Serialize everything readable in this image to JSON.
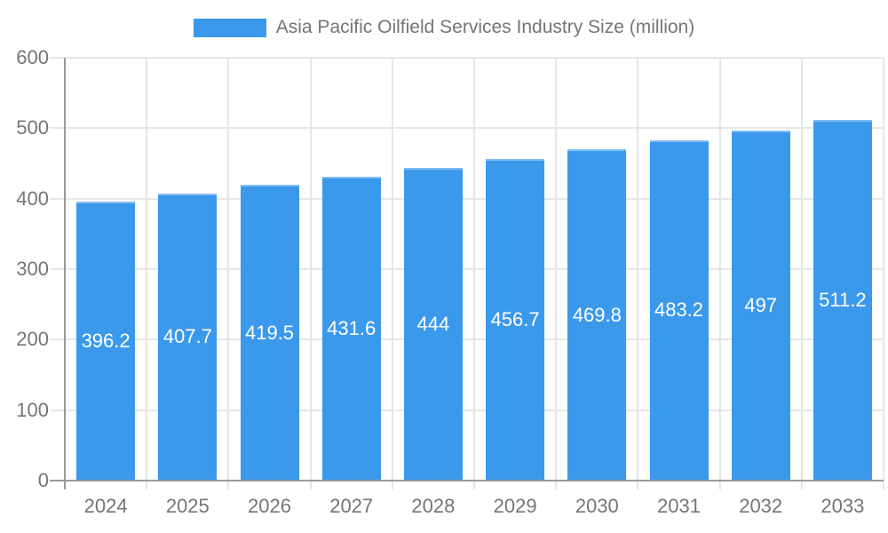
{
  "legend": {
    "label": "Asia Pacific Oilfield Services Industry Size (million)"
  },
  "chart_data": {
    "type": "bar",
    "title": "Asia Pacific Oilfield Services Industry Size (million)",
    "categories": [
      "2024",
      "2025",
      "2026",
      "2027",
      "2028",
      "2029",
      "2030",
      "2031",
      "2032",
      "2033"
    ],
    "series": [
      {
        "name": "Asia Pacific Oilfield Services Industry Size (million)",
        "values": [
          396.2,
          407.7,
          419.5,
          431.6,
          444,
          456.7,
          469.8,
          483.2,
          497,
          511.2
        ]
      }
    ],
    "value_labels": [
      "396.2",
      "407.7",
      "419.5",
      "431.6",
      "444",
      "456.7",
      "469.8",
      "483.2",
      "497",
      "511.2"
    ],
    "xlabel": "",
    "ylabel": "",
    "ylim": [
      0,
      600
    ],
    "yticks": [
      0,
      100,
      200,
      300,
      400,
      500,
      600
    ],
    "grid": true,
    "legend_position": "top",
    "colors": {
      "bar": "#3B99EC",
      "axis": "#999999",
      "gridline": "#E6E6E6",
      "tick_label": "#757575",
      "value_label": "#FFFFFF",
      "legend_text": "#757575"
    }
  }
}
